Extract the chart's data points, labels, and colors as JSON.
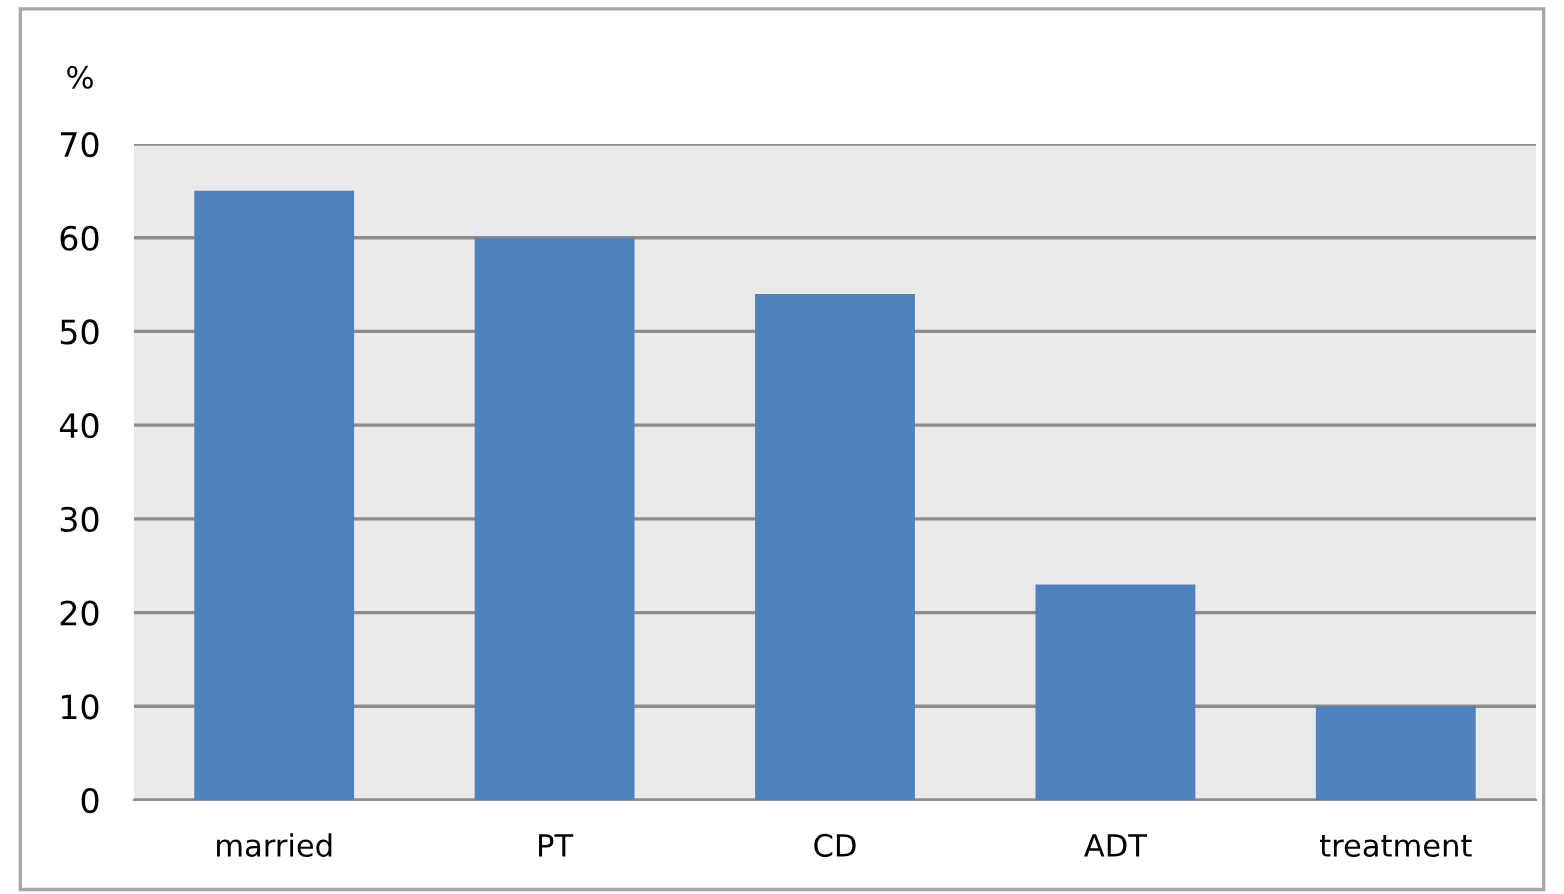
{
  "chart_data": {
    "type": "bar",
    "ylabel": "%",
    "categories": [
      "married",
      "PT",
      "CD",
      "ADT",
      "treatment"
    ],
    "values": [
      65,
      60,
      54,
      23,
      10
    ],
    "color": "#4f81bd",
    "ylim": [
      0,
      70
    ],
    "yticks": [
      0,
      10,
      20,
      30,
      40,
      50,
      60,
      70
    ],
    "grid": "y",
    "legend": false
  }
}
